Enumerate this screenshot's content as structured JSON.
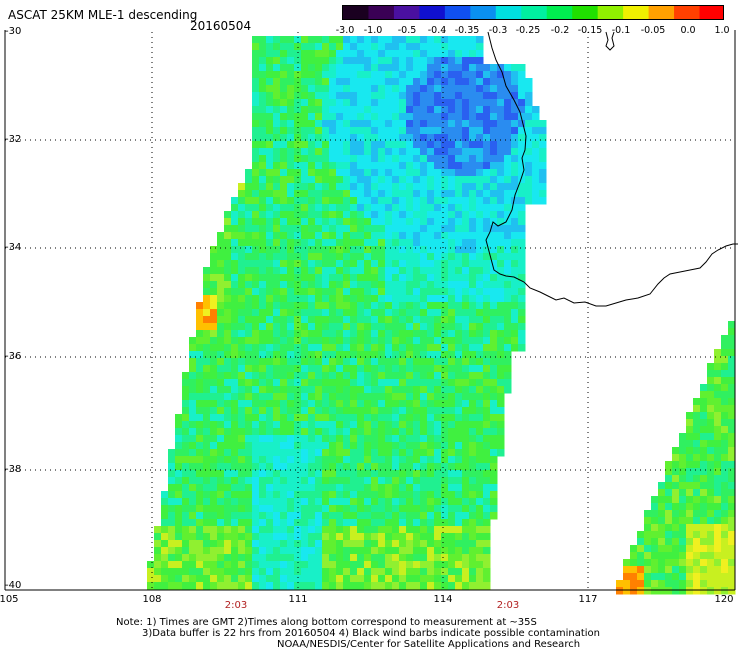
{
  "header": {
    "title": "ASCAT 25KM MLE-1 descending",
    "date": "20160504"
  },
  "colorbar": {
    "colors": [
      "#1a0020",
      "#3a0055",
      "#4a10a0",
      "#1010d0",
      "#1050f0",
      "#0a90f0",
      "#00e0e0",
      "#00f0a0",
      "#00ee50",
      "#20e000",
      "#90f000",
      "#f0f000",
      "#ffa000",
      "#ff4000",
      "#ff0000"
    ],
    "labels": [
      "-3.0",
      "-1.0",
      "-0.5",
      "-0.4",
      "-0.35",
      "-0.3",
      "-0.25",
      "-0.2",
      "-0.15",
      "-0.1",
      "-0.05",
      "0.0",
      "1.0"
    ]
  },
  "axes": {
    "lat_labels": [
      "-30",
      "-32",
      "-34",
      "-36",
      "-38",
      "-40"
    ],
    "lon_labels": [
      "105",
      "108",
      "111",
      "114",
      "117",
      "120"
    ],
    "time_labels": [
      "2:03",
      "2:03"
    ]
  },
  "notes": {
    "line1": "Note: 1) Times are GMT 2)Times along bottom correspond to measurement at ~35S",
    "line2": "3)Data buffer is 22 hrs from 20160504 4) Black wind barbs indicate possible contamination",
    "line3": "NOAA/NESDIS/Center for Satellite Applications and Research"
  }
}
